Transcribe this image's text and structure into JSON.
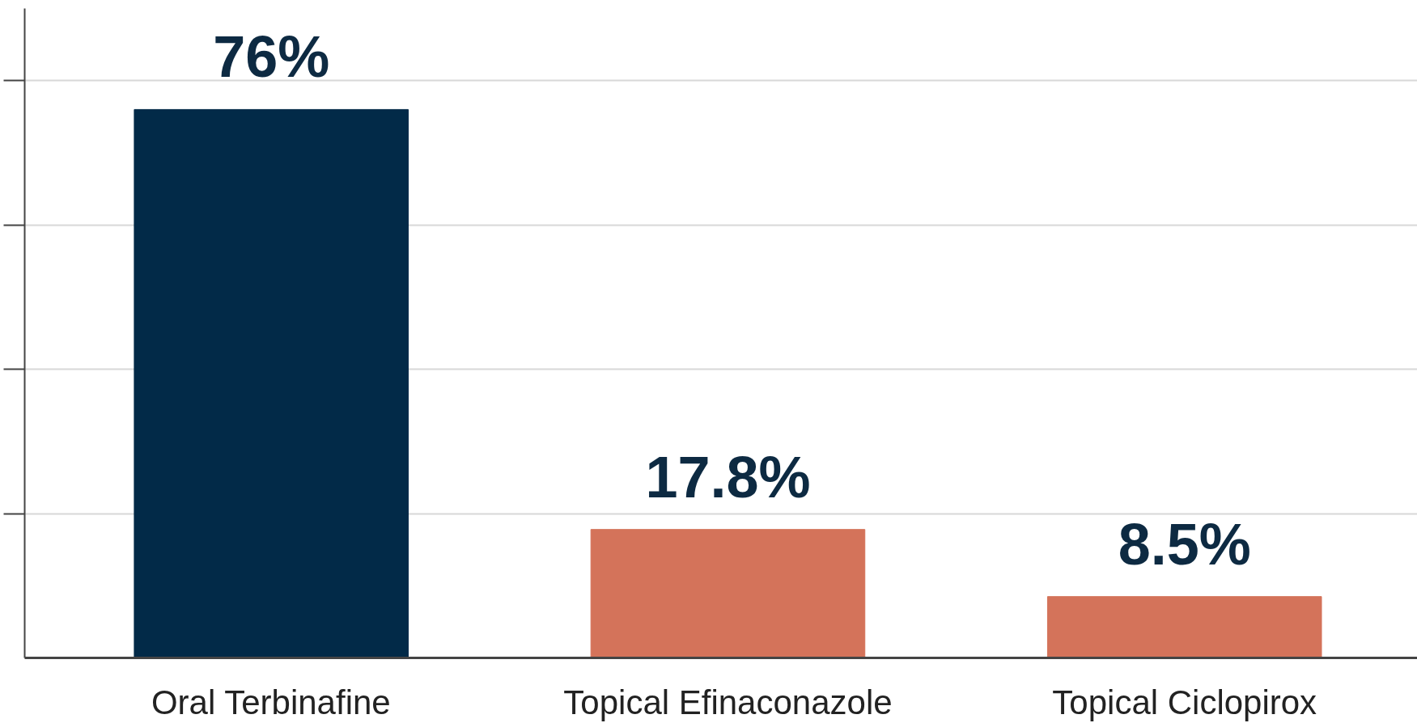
{
  "chart_data": {
    "type": "bar",
    "categories": [
      "Oral Terbinafine",
      "Topical Efinaconazole",
      "Topical Ciclopirox"
    ],
    "values": [
      76,
      17.8,
      8.5
    ],
    "colors": [
      "#022a48",
      "#d4735a",
      "#d4735a"
    ],
    "value_labels": [
      "76%",
      "17.8%",
      "8.5%"
    ],
    "ylim": [
      0,
      90
    ],
    "yticks": [
      {
        "value": 20,
        "label": null
      },
      {
        "value": 40,
        "label": null
      },
      {
        "value": 60,
        "label": null
      },
      {
        "value": 80,
        "label": null
      }
    ],
    "tick_labels": "x",
    "grid": "y"
  }
}
